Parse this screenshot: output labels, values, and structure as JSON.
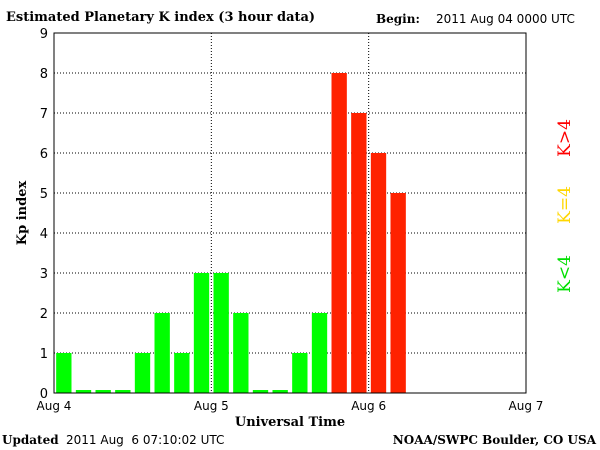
{
  "header": {
    "title": "Estimated Planetary K index (3 hour data)",
    "begin_label": "Begin:",
    "begin_value": "2011 Aug 04 0000 UTC"
  },
  "footer": {
    "updated_label": "Updated",
    "updated_value": "2011 Aug  6 07:10:02 UTC",
    "credit": "NOAA/SWPC Boulder, CO USA"
  },
  "legend": [
    {
      "label": "K>4",
      "color": "#ff0000"
    },
    {
      "label": "K=4",
      "color": "#ffd700"
    },
    {
      "label": "K<4",
      "color": "#00e000"
    }
  ],
  "colors": {
    "low": "#00ff00",
    "high": "#ff2200"
  },
  "chart_data": {
    "type": "bar",
    "title": "Estimated Planetary K index (3 hour data)",
    "xlabel": "Universal Time",
    "ylabel": "Kp index",
    "ylim": [
      0,
      9
    ],
    "yticks": [
      "0",
      "1",
      "2",
      "3",
      "4",
      "5",
      "6",
      "7",
      "8",
      "9"
    ],
    "xticks": [
      "Aug 4",
      "Aug 5",
      "Aug 6",
      "Aug 7"
    ],
    "grid": true,
    "bar_interval_hours": 3,
    "values": [
      1,
      0,
      0,
      0,
      1,
      2,
      1,
      3,
      3,
      2,
      0,
      0,
      1,
      2,
      8,
      7,
      6,
      5
    ],
    "threshold_rule": "K>4 red, K=4 yellow, K<4 green"
  }
}
